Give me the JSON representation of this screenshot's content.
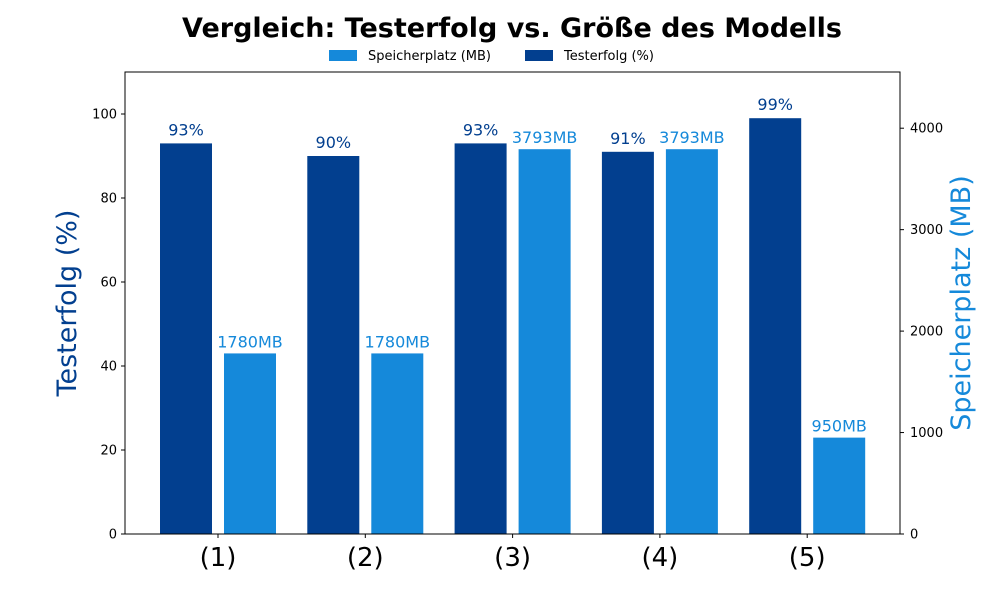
{
  "chart_data": {
    "type": "bar",
    "title": "Vergleich: Testerfolg vs. Größe des Modells",
    "categories": [
      "(1)",
      "(2)",
      "(3)",
      "(4)",
      "(5)"
    ],
    "series": [
      {
        "name": "Testerfolg (%)",
        "axis": "left",
        "color": "#023f8f",
        "values": [
          93,
          90,
          93,
          91,
          99
        ],
        "labels": [
          "93%",
          "90%",
          "93%",
          "91%",
          "99%"
        ]
      },
      {
        "name": "Speicherplatz (MB)",
        "axis": "right",
        "color": "#1589da",
        "values": [
          1780,
          1780,
          3793,
          3793,
          950
        ],
        "labels": [
          "1780MB",
          "1780MB",
          "3793MB",
          "3793MB",
          "950MB"
        ]
      }
    ],
    "ylabel": "Testerfolg (%)",
    "ylabel_right": "Speicherplatz (MB)",
    "ylim": [
      0,
      110
    ],
    "ylim_right": [
      0,
      4554
    ],
    "yticks": [
      0,
      20,
      40,
      60,
      80,
      100
    ],
    "yticks_right": [
      0,
      1000,
      2000,
      3000,
      4000
    ],
    "legend": {
      "placement": "top-center",
      "entries": [
        {
          "label": "Speicherplatz (MB)",
          "color": "#1589da"
        },
        {
          "label": "Testerfolg (%)",
          "color": "#023f8f"
        }
      ]
    },
    "grid": false
  }
}
